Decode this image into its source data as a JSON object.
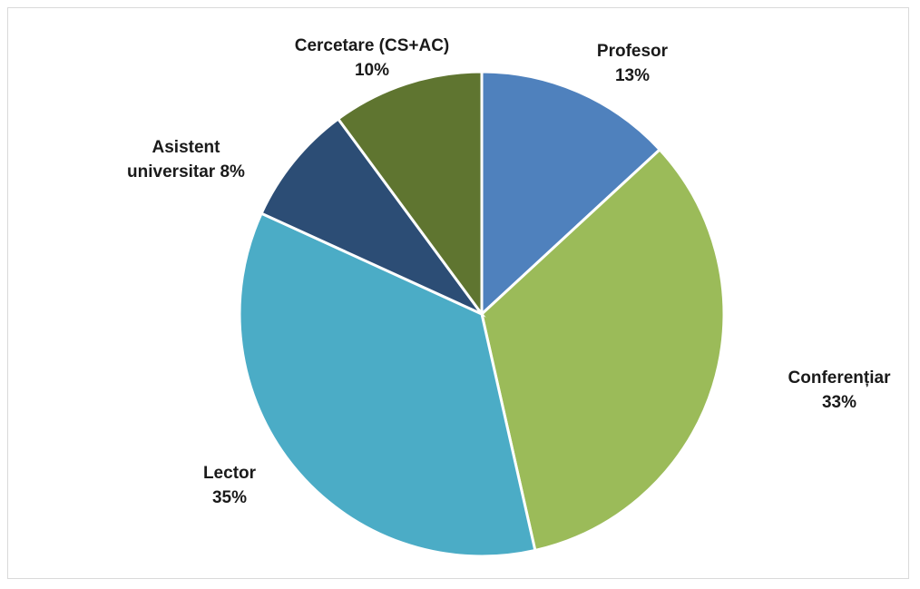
{
  "chart_data": {
    "type": "pie",
    "categories": [
      "Profesor",
      "Conferențiar",
      "Lector",
      "Asistent universitar",
      "Cercetare (CS+AC)"
    ],
    "values": [
      13,
      33,
      35,
      8,
      10
    ],
    "value_labels": [
      "13%",
      "33%",
      "35%",
      "8%",
      "10%"
    ],
    "colors": [
      "#4f81bd",
      "#9bbb59",
      "#4bacc6",
      "#2c4d75",
      "#5f7530"
    ]
  }
}
